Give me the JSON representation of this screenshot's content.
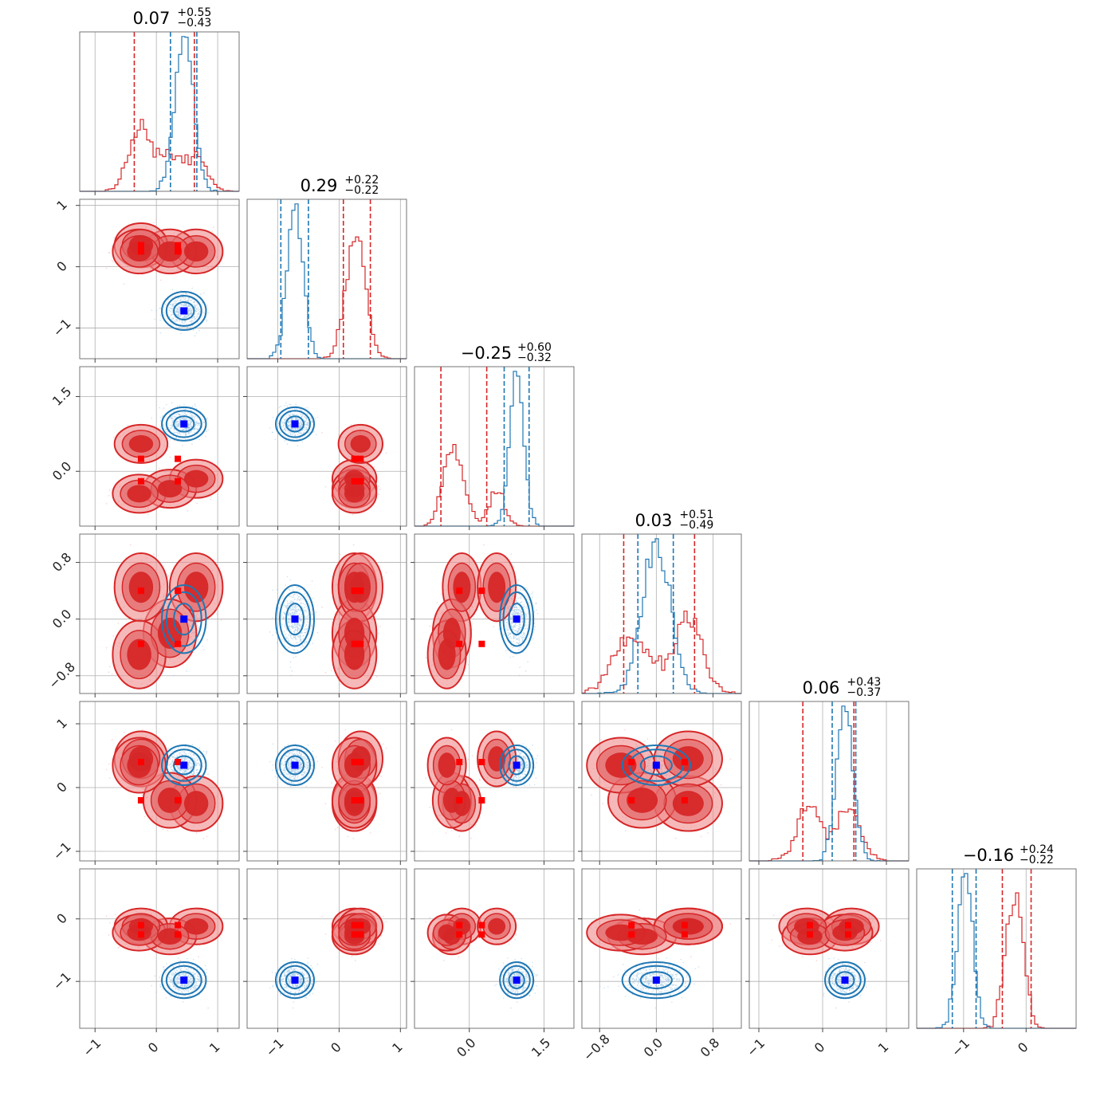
{
  "chart_data": {
    "type": "corner",
    "n_params": 6,
    "grid": true,
    "series": [
      {
        "name": "",
        "color": "#d62728",
        "filled_contours": true,
        "mode_groups": [
          [
            0.35,
            0.35,
            0.25,
            0.2
          ],
          [
            0.35,
            0.35,
            -0.2,
            0.2
          ],
          [
            -0.25,
            0.35,
            -0.2,
            0.2
          ],
          [
            -0.35,
            0.35,
            0.25,
            0.2
          ]
        ],
        "weights": [
          0.2,
          0.2,
          0.3,
          0.3
        ]
      },
      {
        "name": "",
        "color": "#1f77b4",
        "filled_contours": false,
        "modes": [
          [
            0.45,
            0.15,
            -0.72,
            0.13,
            0.95,
            0.14,
            0.0,
            0.22,
            0.35,
            0.14,
            -0.98,
            0.14
          ]
        ]
      }
    ],
    "params": [
      {
        "index": 0,
        "title_value": "0.07",
        "title_plus": "+0.55",
        "title_minus": "−0.43",
        "range": [
          -1.25,
          1.35
        ],
        "ticks": [
          -1,
          0,
          1
        ],
        "tick_labels": [
          "−1",
          "0",
          "1"
        ],
        "red_quantiles": [
          -0.36,
          0.62
        ],
        "blue_quantiles": [
          0.23,
          0.66
        ],
        "red_markers": [
          0.35,
          -0.25
        ],
        "blue_marker": 0.45
      },
      {
        "index": 1,
        "title_value": "0.29",
        "title_plus": "+0.22",
        "title_minus": "−0.22",
        "range": [
          -1.5,
          1.1
        ],
        "ticks": [
          -1,
          0,
          1
        ],
        "tick_labels": [
          "−1",
          "0",
          "1"
        ],
        "red_quantiles": [
          0.07,
          0.51
        ],
        "blue_quantiles": [
          -0.95,
          -0.5
        ],
        "red_markers": [
          0.25,
          0.35
        ],
        "blue_marker": -0.72
      },
      {
        "index": 2,
        "title_value": "−0.25",
        "title_plus": "+0.60",
        "title_minus": "−0.32",
        "range": [
          -1.1,
          2.1
        ],
        "ticks": [
          0.0,
          1.5
        ],
        "tick_labels": [
          "0.0",
          "1.5"
        ],
        "red_quantiles": [
          -0.57,
          0.35
        ],
        "blue_quantiles": [
          0.7,
          1.2
        ],
        "red_markers": [
          -0.2,
          0.25
        ],
        "blue_marker": 0.95
      },
      {
        "index": 3,
        "title_value": "0.03",
        "title_plus": "+0.51",
        "title_minus": "−0.49",
        "range": [
          -1.05,
          1.2
        ],
        "ticks": [
          -0.8,
          0.0,
          0.8
        ],
        "tick_labels": [
          "−0.8",
          "0.0",
          "0.8"
        ],
        "red_quantiles": [
          -0.46,
          0.54
        ],
        "blue_quantiles": [
          -0.26,
          0.24
        ],
        "red_markers": [
          -0.35,
          0.4
        ],
        "blue_marker": 0.0
      },
      {
        "index": 4,
        "title_value": "0.06",
        "title_plus": "+0.43",
        "title_minus": "−0.37",
        "range": [
          -1.15,
          1.35
        ],
        "ticks": [
          -1,
          0,
          1
        ],
        "tick_labels": [
          "−1",
          "0",
          "1"
        ],
        "red_quantiles": [
          -0.31,
          0.49
        ],
        "blue_quantiles": [
          0.15,
          0.52
        ],
        "red_markers": [
          -0.2,
          0.4
        ],
        "blue_marker": 0.35
      },
      {
        "index": 5,
        "title_value": "−0.16",
        "title_plus": "+0.24",
        "title_minus": "−0.22",
        "range": [
          -1.75,
          0.8
        ],
        "ticks": [
          -1,
          0
        ],
        "tick_labels": [
          "−1",
          "0"
        ],
        "red_quantiles": [
          -0.38,
          0.08
        ],
        "blue_quantiles": [
          -1.18,
          -0.8
        ],
        "red_markers": [
          -0.1,
          -0.25
        ],
        "blue_marker": -0.98
      }
    ]
  }
}
